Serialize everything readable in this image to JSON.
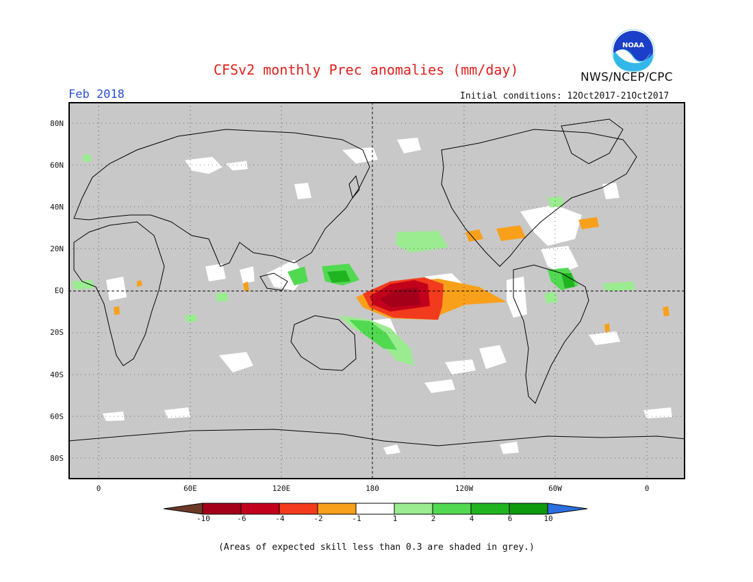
{
  "header": {
    "title": "CFSv2 monthly Prec anomalies (mm/day)",
    "month": "Feb 2018",
    "initial_conditions": "Initial conditions: 12Oct2017-21Oct2017",
    "agency": "NWS/NCEP/CPC",
    "logo_text": "NOAA"
  },
  "map": {
    "lat_labels": [
      "80N",
      "60N",
      "40N",
      "20N",
      "EQ",
      "20S",
      "40S",
      "60S",
      "80S"
    ],
    "lon_labels": [
      "0",
      "60E",
      "120E",
      "180",
      "120W",
      "60W",
      "0"
    ]
  },
  "legend": {
    "tick_labels": [
      "-10",
      "-6",
      "-4",
      "-2",
      "-1",
      "1",
      "2",
      "4",
      "6",
      "10"
    ],
    "colors": [
      "#6b3a26",
      "#a4001a",
      "#c3001c",
      "#f23b1c",
      "#f9a01b",
      "#ffffff",
      "#9bec90",
      "#52d952",
      "#20b421",
      "#0d9a0d",
      "#2b6fe0"
    ],
    "grey_color": "#c8c8c8"
  },
  "footnote": "(Areas of expected skill less than 0.3 are shaded in grey.)"
}
